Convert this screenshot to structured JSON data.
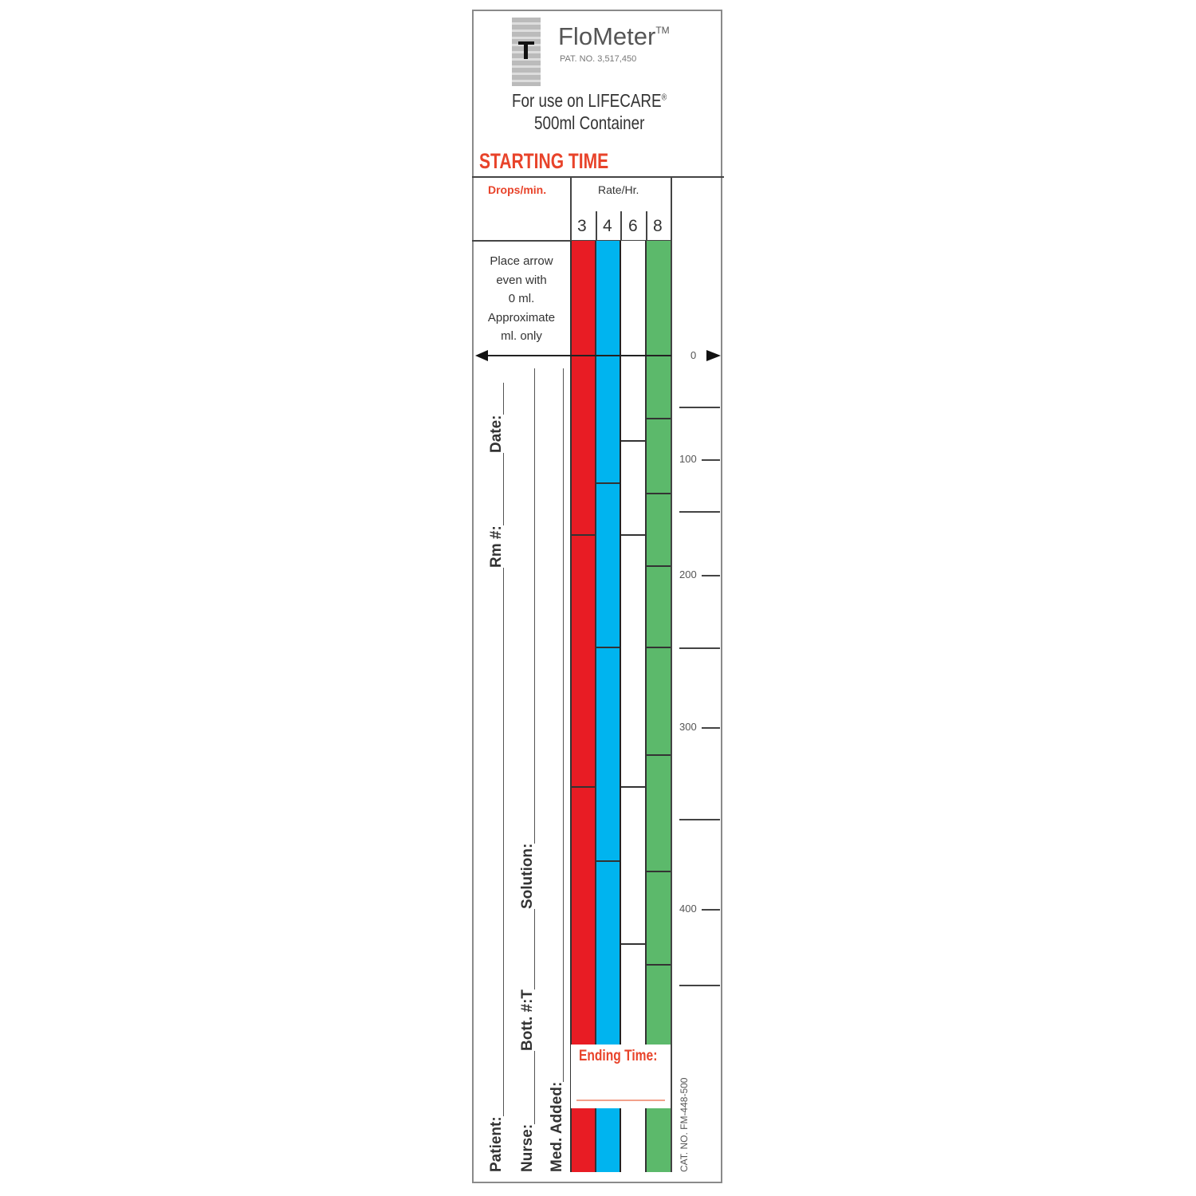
{
  "header": {
    "brand": "FloMeter",
    "trademark": "TM",
    "patent": "PAT. NO. 3,517,450",
    "use_line1": "For use on LIFECARE",
    "registered": "®",
    "use_line2": "500ml Container",
    "starting_time": "STARTING TIME"
  },
  "table": {
    "drops_label": "Drops/min.",
    "rate_label": "Rate/Hr.",
    "rates": [
      "3",
      "4",
      "6",
      "8"
    ],
    "instructions": [
      "Place arrow",
      "even with",
      "0 ml.",
      "Approximate",
      "ml. only"
    ]
  },
  "colors": {
    "rate_3": "#e81c24",
    "rate_4": "#00b4ef",
    "rate_6": "#ffffff",
    "rate_8": "#5cb96b",
    "accent": "#e8432a"
  },
  "scale": {
    "labels": [
      "0",
      "100",
      "200",
      "300",
      "400"
    ]
  },
  "form": {
    "patient": "Patient:",
    "rm": "Rm #:",
    "date": "Date:",
    "nurse": "Nurse:",
    "bott": "Bott. #:T",
    "solution": "Solution:",
    "med_added": "Med. Added:",
    "ending_time": "Ending Time:"
  },
  "catalog": "CAT. NO. FM-448-500"
}
